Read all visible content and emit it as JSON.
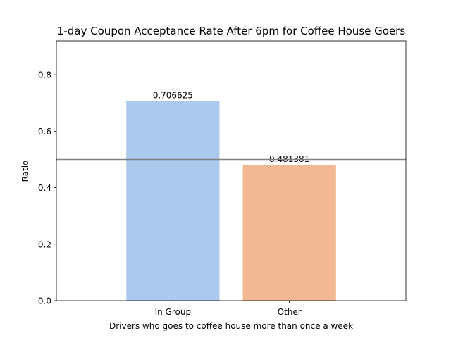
{
  "chart_data": {
    "type": "bar",
    "title": "1-day Coupon Acceptance Rate After 6pm for Coffee House Goers",
    "xlabel": "Drivers who goes to coffee house more than once a week",
    "ylabel": "Ratio",
    "categories": [
      "In Group",
      "Other"
    ],
    "values": [
      0.706625,
      0.481381
    ],
    "value_labels": [
      "0.706625",
      "0.481381"
    ],
    "colors": [
      "#abc9ed",
      "#f1b893"
    ],
    "reference_line": {
      "y": 0.5,
      "color": "#808080"
    },
    "ylim": [
      0,
      0.92
    ],
    "xlim": [
      -1,
      2
    ],
    "yticks": [
      0.0,
      0.2,
      0.4,
      0.6,
      0.8
    ],
    "ytick_labels": [
      "0.0",
      "0.2",
      "0.4",
      "0.6",
      "0.8"
    ],
    "grid": false,
    "legend": "none"
  }
}
